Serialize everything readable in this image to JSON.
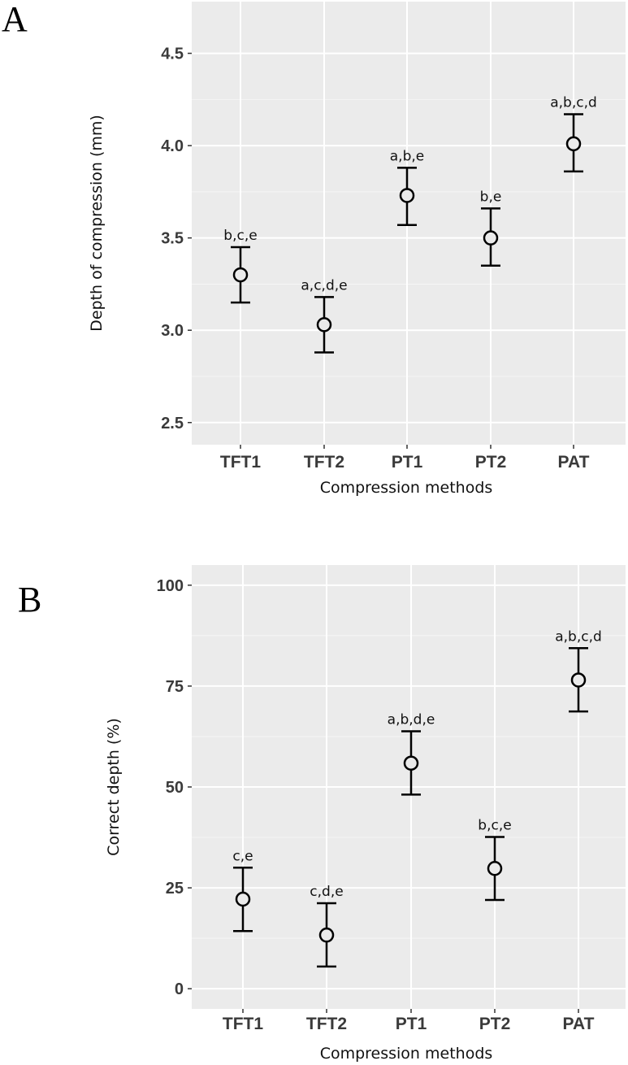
{
  "chart_data": [
    {
      "type": "scatter",
      "panel_label": "A",
      "title": "",
      "xlabel": "Compression methods",
      "ylabel": "Depth of compression (mm)",
      "categories": [
        "TFT1",
        "TFT2",
        "PT1",
        "PT2",
        "PAT"
      ],
      "ylim": [
        2.38,
        4.78
      ],
      "yticks": [
        2.5,
        3.0,
        3.5,
        4.0,
        4.5
      ],
      "ytick_labels": [
        "2.5",
        "3.0",
        "3.5",
        "4.0",
        "4.5"
      ],
      "grid": true,
      "points": [
        {
          "category": "TFT1",
          "mean": 3.3,
          "lower": 3.15,
          "upper": 3.45,
          "label": "b,c,e"
        },
        {
          "category": "TFT2",
          "mean": 3.03,
          "lower": 2.88,
          "upper": 3.18,
          "label": "a,c,d,e"
        },
        {
          "category": "PT1",
          "mean": 3.73,
          "lower": 3.57,
          "upper": 3.88,
          "label": "a,b,e"
        },
        {
          "category": "PT2",
          "mean": 3.5,
          "lower": 3.35,
          "upper": 3.66,
          "label": "b,e"
        },
        {
          "category": "PAT",
          "mean": 4.01,
          "lower": 3.86,
          "upper": 4.17,
          "label": "a,b,c,d"
        }
      ]
    },
    {
      "type": "scatter",
      "panel_label": "B",
      "title": "",
      "xlabel": "Compression methods",
      "ylabel": "Correct depth (%)",
      "categories": [
        "TFT1",
        "TFT2",
        "PT1",
        "PT2",
        "PAT"
      ],
      "ylim": [
        -5,
        105
      ],
      "yticks": [
        0,
        25,
        50,
        75,
        100
      ],
      "ytick_labels": [
        "0",
        "25",
        "50",
        "75",
        "100"
      ],
      "grid": true,
      "points": [
        {
          "category": "TFT1",
          "mean": 22.2,
          "lower": 14.3,
          "upper": 30.0,
          "label": "c,e"
        },
        {
          "category": "TFT2",
          "mean": 13.3,
          "lower": 5.5,
          "upper": 21.2,
          "label": "c,d,e"
        },
        {
          "category": "PT1",
          "mean": 55.9,
          "lower": 48.1,
          "upper": 63.8,
          "label": "a,b,d,e"
        },
        {
          "category": "PT2",
          "mean": 29.8,
          "lower": 22.0,
          "upper": 37.6,
          "label": "b,c,e"
        },
        {
          "category": "PAT",
          "mean": 76.5,
          "lower": 68.7,
          "upper": 84.4,
          "label": "a,b,c,d"
        }
      ]
    }
  ]
}
